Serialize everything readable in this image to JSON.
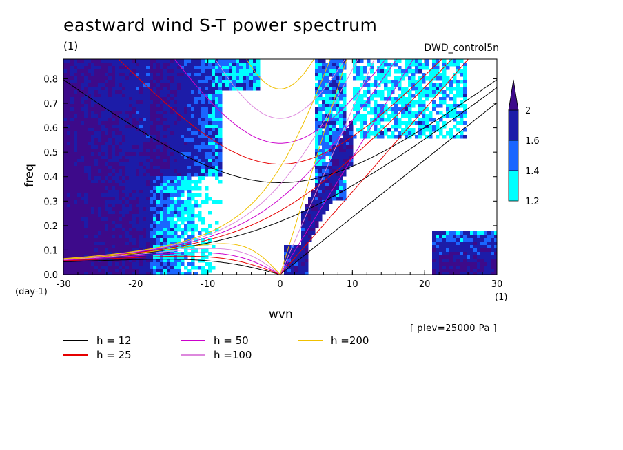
{
  "header": {
    "title": "eastward wind S-T power spectrum",
    "label_top_left": "(1)",
    "run_name": "DWD_control5n"
  },
  "axes": {
    "x_label": "wvn",
    "y_label": "freq",
    "x_unit": "(1)",
    "y_unit": "(day-1)",
    "x_ticks": [
      "-30",
      "-20",
      "-10",
      "0",
      "10",
      "20",
      "30"
    ],
    "y_ticks": [
      "0.0",
      "0.1",
      "0.2",
      "0.3",
      "0.4",
      "0.5",
      "0.6",
      "0.7",
      "0.8"
    ]
  },
  "plev_note": "[ plev=25000 Pa ]",
  "legend": [
    {
      "label": "h = 12",
      "color": "#000000"
    },
    {
      "label": "h = 25",
      "color": "#e60000"
    },
    {
      "label": "h = 50",
      "color": "#cc00cc"
    },
    {
      "label": "h =100",
      "color": "#dd88dd"
    },
    {
      "label": "h =200",
      "color": "#f0c000"
    }
  ],
  "colorbar": {
    "levels": [
      "1.2",
      "1.4",
      "1.6",
      "2"
    ],
    "colors": [
      "#00ffff",
      "#1a66ff",
      "#1c1ca8",
      "#3d0a8a"
    ]
  },
  "chart_data": {
    "type": "heatmap",
    "title": "eastward wind S-T power spectrum",
    "xlabel": "wvn",
    "ylabel": "freq",
    "xlim": [
      -30,
      30
    ],
    "ylim": [
      0,
      0.88
    ],
    "contour_levels": [
      1.2,
      1.4,
      1.6,
      2.0
    ],
    "dispersion_curves_h": [
      12,
      25,
      50,
      100,
      200
    ],
    "grid": false
  }
}
